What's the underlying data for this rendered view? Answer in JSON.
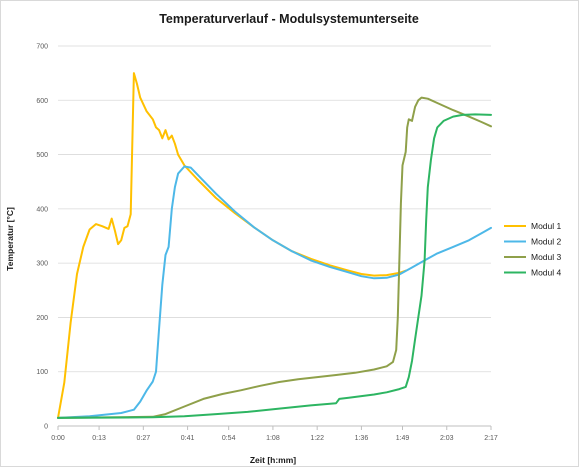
{
  "chart_data": {
    "type": "line",
    "title": "Temperaturverlauf - Modulsystemunterseite",
    "xlabel": "Zeit [h:mm]",
    "ylabel": "Temperatur [°C]",
    "x_unit": "minutes",
    "xlim": [
      0,
      137
    ],
    "ylim": [
      0,
      700
    ],
    "yticks": [
      0,
      100,
      200,
      300,
      400,
      500,
      600,
      700
    ],
    "xticks": [
      {
        "value": 0,
        "label": "0:00"
      },
      {
        "value": 13,
        "label": "0:13"
      },
      {
        "value": 27,
        "label": "0:27"
      },
      {
        "value": 41,
        "label": "0:41"
      },
      {
        "value": 54,
        "label": "0:54"
      },
      {
        "value": 68,
        "label": "1:08"
      },
      {
        "value": 82,
        "label": "1:22"
      },
      {
        "value": 96,
        "label": "1:36"
      },
      {
        "value": 109,
        "label": "1:49"
      },
      {
        "value": 123,
        "label": "2:03"
      },
      {
        "value": 137,
        "label": "2:17"
      }
    ],
    "grid": "horizontal",
    "legend_position": "right",
    "series": [
      {
        "name": "Modul 1",
        "color": "#ffc000",
        "points": [
          [
            0,
            15
          ],
          [
            2,
            80
          ],
          [
            4,
            190
          ],
          [
            6,
            280
          ],
          [
            8,
            330
          ],
          [
            10,
            362
          ],
          [
            12,
            372
          ],
          [
            14,
            368
          ],
          [
            16,
            363
          ],
          [
            17,
            382
          ],
          [
            18,
            360
          ],
          [
            19,
            335
          ],
          [
            20,
            342
          ],
          [
            21,
            365
          ],
          [
            22,
            368
          ],
          [
            23,
            390
          ],
          [
            24,
            650
          ],
          [
            25,
            630
          ],
          [
            26,
            605
          ],
          [
            28,
            580
          ],
          [
            30,
            565
          ],
          [
            31,
            550
          ],
          [
            32,
            545
          ],
          [
            33,
            530
          ],
          [
            34,
            545
          ],
          [
            35,
            528
          ],
          [
            36,
            535
          ],
          [
            37,
            520
          ],
          [
            38,
            500
          ],
          [
            40,
            480
          ],
          [
            44,
            455
          ],
          [
            50,
            420
          ],
          [
            56,
            392
          ],
          [
            62,
            366
          ],
          [
            68,
            342
          ],
          [
            74,
            322
          ],
          [
            80,
            308
          ],
          [
            86,
            296
          ],
          [
            92,
            286
          ],
          [
            96,
            280
          ],
          [
            100,
            277
          ],
          [
            104,
            278
          ],
          [
            108,
            282
          ],
          [
            110,
            286
          ]
        ]
      },
      {
        "name": "Modul 2",
        "color": "#4db8e8",
        "points": [
          [
            0,
            15
          ],
          [
            10,
            18
          ],
          [
            20,
            24
          ],
          [
            24,
            30
          ],
          [
            26,
            45
          ],
          [
            28,
            65
          ],
          [
            30,
            82
          ],
          [
            31,
            100
          ],
          [
            32,
            180
          ],
          [
            33,
            260
          ],
          [
            34,
            315
          ],
          [
            35,
            330
          ],
          [
            36,
            400
          ],
          [
            37,
            440
          ],
          [
            38,
            465
          ],
          [
            40,
            478
          ],
          [
            42,
            476
          ],
          [
            45,
            458
          ],
          [
            50,
            428
          ],
          [
            56,
            395
          ],
          [
            62,
            366
          ],
          [
            68,
            342
          ],
          [
            74,
            322
          ],
          [
            80,
            305
          ],
          [
            86,
            293
          ],
          [
            92,
            283
          ],
          [
            96,
            276
          ],
          [
            100,
            272
          ],
          [
            104,
            273
          ],
          [
            108,
            279
          ],
          [
            112,
            292
          ],
          [
            116,
            305
          ],
          [
            120,
            318
          ],
          [
            125,
            330
          ],
          [
            130,
            342
          ],
          [
            134,
            355
          ],
          [
            137,
            365
          ]
        ]
      },
      {
        "name": "Modul 3",
        "color": "#8fa04a",
        "points": [
          [
            0,
            15
          ],
          [
            30,
            17
          ],
          [
            34,
            22
          ],
          [
            40,
            36
          ],
          [
            46,
            50
          ],
          [
            52,
            59
          ],
          [
            58,
            66
          ],
          [
            64,
            74
          ],
          [
            70,
            81
          ],
          [
            76,
            86
          ],
          [
            82,
            90
          ],
          [
            88,
            94
          ],
          [
            94,
            98
          ],
          [
            100,
            104
          ],
          [
            104,
            110
          ],
          [
            106,
            118
          ],
          [
            107,
            140
          ],
          [
            107.5,
            200
          ],
          [
            108,
            300
          ],
          [
            108.5,
            410
          ],
          [
            109,
            480
          ],
          [
            110,
            505
          ],
          [
            110.5,
            550
          ],
          [
            111,
            565
          ],
          [
            112,
            562
          ],
          [
            113,
            588
          ],
          [
            114,
            600
          ],
          [
            115,
            605
          ],
          [
            117,
            603
          ],
          [
            120,
            595
          ],
          [
            125,
            582
          ],
          [
            130,
            570
          ],
          [
            134,
            560
          ],
          [
            137,
            552
          ]
        ]
      },
      {
        "name": "Modul 4",
        "color": "#2db562",
        "points": [
          [
            0,
            15
          ],
          [
            30,
            16
          ],
          [
            40,
            18
          ],
          [
            50,
            22
          ],
          [
            60,
            26
          ],
          [
            70,
            32
          ],
          [
            80,
            38
          ],
          [
            88,
            42
          ],
          [
            89,
            50
          ],
          [
            92,
            52
          ],
          [
            96,
            55
          ],
          [
            100,
            58
          ],
          [
            104,
            62
          ],
          [
            108,
            68
          ],
          [
            110,
            72
          ],
          [
            111,
            90
          ],
          [
            112,
            120
          ],
          [
            113,
            160
          ],
          [
            114,
            200
          ],
          [
            115,
            240
          ],
          [
            116,
            305
          ],
          [
            116.5,
            380
          ],
          [
            117,
            440
          ],
          [
            118,
            490
          ],
          [
            119,
            530
          ],
          [
            120,
            550
          ],
          [
            122,
            562
          ],
          [
            125,
            570
          ],
          [
            128,
            573
          ],
          [
            132,
            574
          ],
          [
            137,
            573
          ]
        ]
      }
    ]
  }
}
